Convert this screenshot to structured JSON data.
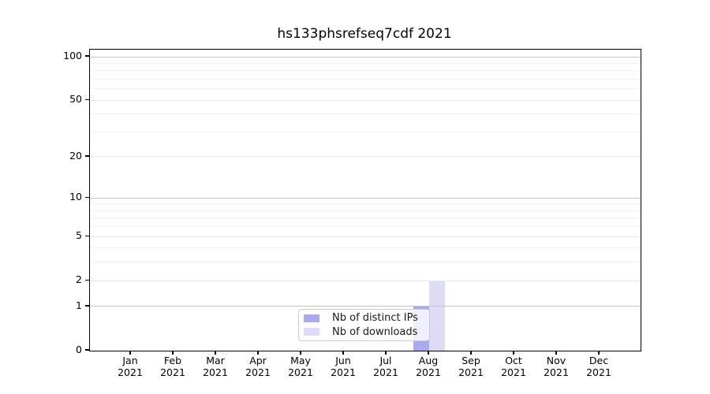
{
  "chart_data": {
    "type": "bar",
    "title": "hs133phsrefseq7cdf 2021",
    "categories": [
      "Jan",
      "Feb",
      "Mar",
      "Apr",
      "May",
      "Jun",
      "Jul",
      "Aug",
      "Sep",
      "Oct",
      "Nov",
      "Dec"
    ],
    "category_year": "2021",
    "series": [
      {
        "name": "Nb of distinct IPs",
        "color": "#aaaaee",
        "values": [
          0,
          0,
          0,
          0,
          0,
          0,
          0,
          1,
          0,
          0,
          0,
          0
        ]
      },
      {
        "name": "Nb of downloads",
        "color": "#dcdcf7",
        "values": [
          0,
          0,
          0,
          0,
          0,
          0,
          0,
          2,
          0,
          0,
          0,
          0
        ]
      }
    ],
    "scale": "log1p",
    "ylim": [
      0,
      112
    ],
    "y_major_ticks": [
      0,
      1,
      2,
      5,
      10,
      20,
      50,
      100
    ],
    "y_minor_gridlines": [
      3,
      4,
      6,
      7,
      8,
      9,
      30,
      40,
      60,
      70,
      80,
      90
    ],
    "grid": "horizontal",
    "legend_position": "lower center",
    "colors": {
      "decade_grid": "#c4c4c4",
      "mid_grid": "#e8e8e8",
      "minor_grid": "#f2f2f2",
      "axis": "#000000",
      "text": "#000000"
    }
  }
}
